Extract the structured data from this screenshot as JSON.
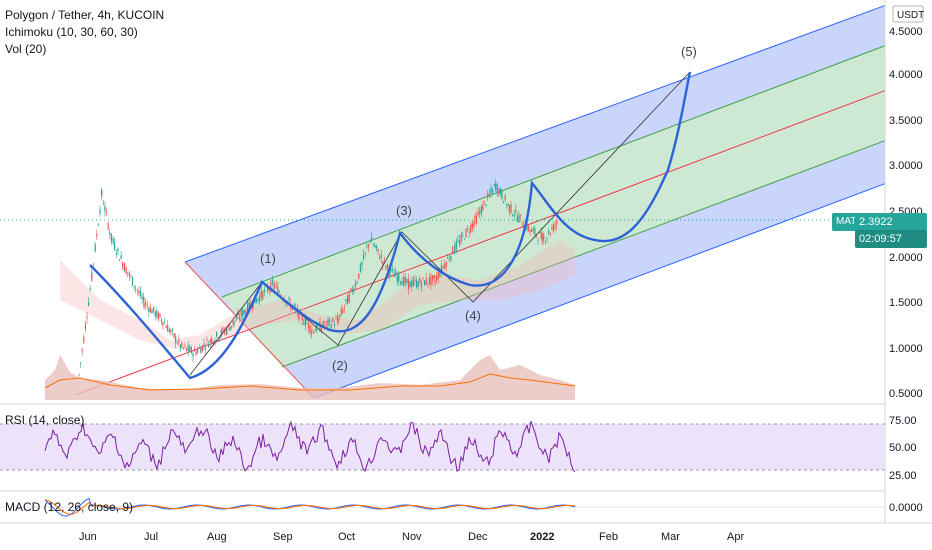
{
  "header": {
    "symbol_title": "Polygon / Tether, 4h, KUCOIN",
    "ichimoku": "Ichimoku (10, 30, 60, 30)",
    "volume": "Vol (20)"
  },
  "price_axis": {
    "unit": "USDT",
    "ticks": [
      "4.5000",
      "4.0000",
      "3.5000",
      "3.0000",
      "2.5000",
      "2.0000",
      "1.5000",
      "1.0000",
      "0.5000"
    ]
  },
  "price_tag": {
    "symbol": "MATICUSDT",
    "price": "2.3922",
    "countdown": "02:09:57",
    "color": "#26a69a"
  },
  "rsi_pane": {
    "label": "RSI (14, close)",
    "ticks": [
      "75.00",
      "50.00",
      "25.00"
    ]
  },
  "macd_pane": {
    "label": "MACD (12, 26, close, 9)",
    "ticks": [
      "0.0000"
    ]
  },
  "time_axis": [
    "Jun",
    "Jul",
    "Aug",
    "Sep",
    "Oct",
    "Nov",
    "Dec",
    "2022",
    "Feb",
    "Mar",
    "Apr"
  ],
  "wave_labels": [
    "(1)",
    "(2)",
    "(3)",
    "(4)",
    "(5)"
  ],
  "colors": {
    "channel_outer": "#b8c7f9",
    "channel_inner": "#cfeccb",
    "channel_line": "#2962ff",
    "median_line": "#f23645",
    "wave_curve": "#2c63d6",
    "candle_up": "#26a69a",
    "candle_down": "#ef5350",
    "rsi": "#7b1fa2",
    "rsi_band": "#e7dcf9"
  },
  "chart_data": {
    "type": "line",
    "title": "Polygon / Tether, 4h, KUCOIN",
    "ylabel": "USDT",
    "ylim": [
      0.4,
      4.8
    ],
    "x": [
      "Jun",
      "Jul",
      "Aug",
      "Sep",
      "Oct",
      "Nov",
      "Dec",
      "2022",
      "Feb",
      "Mar",
      "Apr"
    ],
    "series": [
      {
        "values": [
          [
            0.0,
            0.7
          ],
          [
            0.2,
            1.8
          ],
          [
            0.35,
            2.7
          ],
          [
            0.5,
            2.2
          ],
          [
            0.7,
            1.9
          ],
          [
            1.0,
            1.5
          ],
          [
            1.3,
            1.3
          ],
          [
            1.6,
            1.0
          ],
          [
            1.8,
            0.95
          ],
          [
            2.0,
            1.05
          ],
          [
            2.3,
            1.2
          ],
          [
            2.7,
            1.5
          ],
          [
            3.0,
            1.7
          ],
          [
            3.3,
            1.45
          ],
          [
            3.6,
            1.2
          ],
          [
            4.0,
            1.3
          ],
          [
            4.3,
            1.75
          ],
          [
            4.5,
            2.2
          ],
          [
            4.8,
            1.85
          ],
          [
            5.1,
            1.7
          ],
          [
            5.5,
            1.75
          ],
          [
            5.8,
            2.1
          ],
          [
            6.1,
            2.4
          ],
          [
            6.4,
            2.8
          ],
          [
            6.6,
            2.55
          ],
          [
            6.9,
            2.3
          ],
          [
            7.1,
            2.2
          ],
          [
            7.3,
            2.39
          ]
        ]
      }
    ],
    "annotations": [
      "(1)",
      "(2)",
      "(3)",
      "(4)",
      "(5)"
    ]
  }
}
